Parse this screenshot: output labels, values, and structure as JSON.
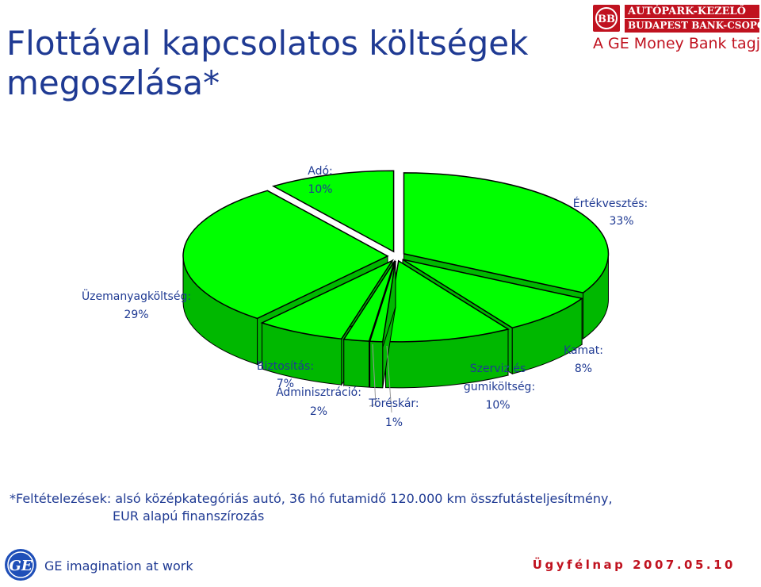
{
  "slide": {
    "title": "Flottával kapcsolatos költségek megoszlása*",
    "footnote_line1": "*Feltételezések: alsó középkategóriás autó, 36 hó futamidő 120.000 km összfutásteljesítmény,",
    "footnote_line2": "EUR alapú finanszírozás",
    "event": "Ügyfélnap 2007.05.10"
  },
  "brand": {
    "line1": "AUTÓPARK-KEZELŐ",
    "line2": "BUDAPEST BANK-CSOPORT",
    "tagline": "A GE Money Bank tagja",
    "emblem": "BB"
  },
  "ge": {
    "logo_text": "GE",
    "tagline": "GE imagination at work"
  },
  "colors": {
    "slice_top": "#00ff00",
    "slice_side": "#00b800",
    "outline": "#000000",
    "text": "#1f3a93",
    "brand_red": "#c0121f"
  },
  "chart_data": {
    "type": "pie",
    "style": "3d-exploded",
    "title": "",
    "series": [
      {
        "values": [
          {
            "label": "Értékvesztés",
            "label_text": "Értékvesztés:",
            "percent_text": "33%",
            "value": 33
          },
          {
            "label": "Kamat",
            "label_text": "Kamat:",
            "percent_text": "8%",
            "value": 8
          },
          {
            "label": "Szerviz és gumiköltség",
            "label_text_1": "Szerviz  és",
            "label_text_2": "gumiköltség:",
            "percent_text": "10%",
            "value": 10
          },
          {
            "label": "Töréskár",
            "label_text": "Töréskár:",
            "percent_text": "1%",
            "value": 1
          },
          {
            "label": "Adminisztráció",
            "label_text": "Adminisztráció:",
            "percent_text": "2%",
            "value": 2
          },
          {
            "label": "Biztosítás",
            "label_text": "Biztosítás:",
            "percent_text": "7%",
            "value": 7
          },
          {
            "label": "Üzemanyagköltség",
            "label_text": "Üzemanyagköltség:",
            "percent_text": "29%",
            "value": 29
          },
          {
            "label": "Adó",
            "label_text": "Adó:",
            "percent_text": "10%",
            "value": 10
          }
        ]
      }
    ]
  }
}
